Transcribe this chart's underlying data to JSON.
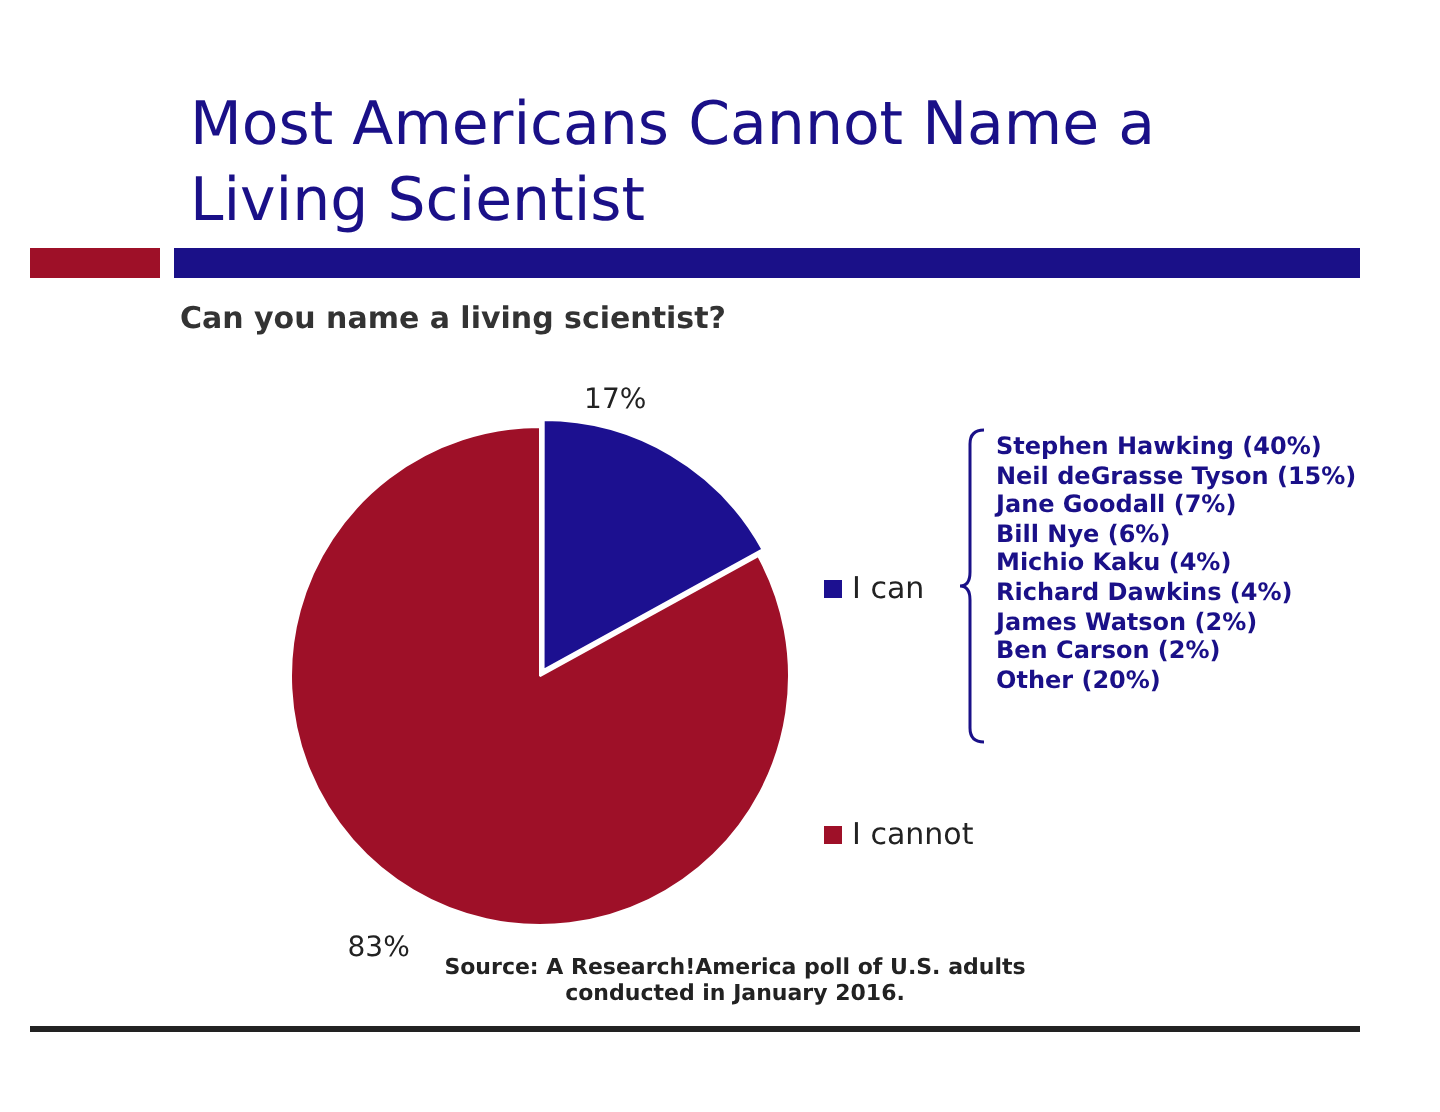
{
  "chart_data": {
    "type": "pie",
    "title": "Most Americans Cannot Name a Living Scientist",
    "subtitle": "Can you name a living scientist?",
    "categories": [
      "I can",
      "I cannot"
    ],
    "values": [
      17,
      83
    ],
    "colors": [
      "#1c1090",
      "#9e1028"
    ],
    "value_labels": [
      "17%",
      "83%"
    ],
    "legend": "right",
    "annotations": [
      "Stephen Hawking (40%)",
      "Neil deGrasse Tyson (15%)",
      "Jane Goodall (7%)",
      "Bill Nye (6%)",
      "Michio Kaku (4%)",
      "Richard Dawkins (4%)",
      "James Watson (2%)",
      "Ben Carson (2%)",
      "Other (20%)",
      "Source: A Research!America poll of U.S. adults conducted in January 2016."
    ]
  }
}
